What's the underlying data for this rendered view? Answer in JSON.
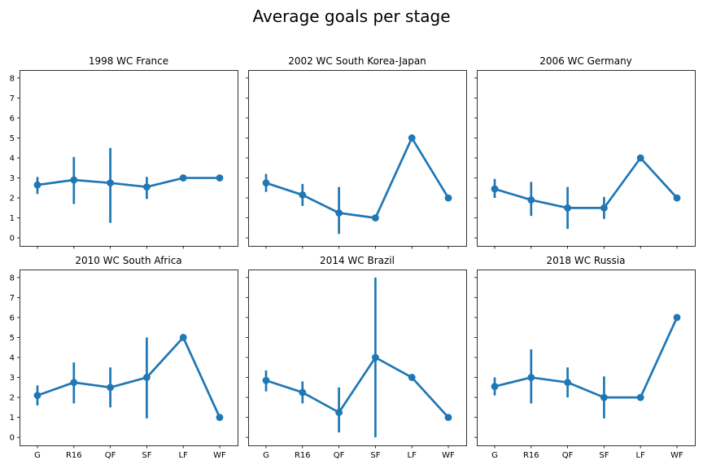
{
  "suptitle": "Average goals per stage",
  "chart_data": {
    "type": "line",
    "categories": [
      "G",
      "R16",
      "QF",
      "SF",
      "LF",
      "WF"
    ],
    "yticks": [
      0,
      1,
      2,
      3,
      4,
      5,
      6,
      7,
      8
    ],
    "ylim": [
      -0.4,
      8.4
    ],
    "color": "#1f77b4",
    "grid": false,
    "panels": [
      {
        "title": "1998 WC France",
        "values": [
          2.65,
          2.9,
          2.75,
          2.55,
          3.0,
          3.0
        ],
        "ci_low": [
          2.2,
          1.7,
          0.75,
          1.95,
          3.0,
          3.0
        ],
        "ci_high": [
          3.05,
          4.05,
          4.5,
          3.05,
          3.0,
          3.0
        ]
      },
      {
        "title": "2002 WC South Korea-Japan",
        "values": [
          2.75,
          2.15,
          1.25,
          1.0,
          5.0,
          2.0
        ],
        "ci_low": [
          2.3,
          1.6,
          0.2,
          1.0,
          5.0,
          2.0
        ],
        "ci_high": [
          3.2,
          2.7,
          2.55,
          1.0,
          5.0,
          2.0
        ]
      },
      {
        "title": "2006 WC Germany",
        "values": [
          2.45,
          1.9,
          1.5,
          1.5,
          4.0,
          2.0
        ],
        "ci_low": [
          2.0,
          1.1,
          0.45,
          0.95,
          4.0,
          2.0
        ],
        "ci_high": [
          2.95,
          2.8,
          2.55,
          2.05,
          4.0,
          2.0
        ]
      },
      {
        "title": "2010 WC South Africa",
        "values": [
          2.1,
          2.75,
          2.5,
          3.0,
          5.0,
          1.0
        ],
        "ci_low": [
          1.6,
          1.7,
          1.5,
          0.95,
          5.0,
          1.0
        ],
        "ci_high": [
          2.6,
          3.75,
          3.5,
          5.0,
          5.0,
          1.0
        ]
      },
      {
        "title": "2014 WC Brazil",
        "values": [
          2.85,
          2.25,
          1.25,
          4.0,
          3.0,
          1.0
        ],
        "ci_low": [
          2.3,
          1.7,
          0.25,
          0.0,
          3.0,
          1.0
        ],
        "ci_high": [
          3.35,
          2.8,
          2.5,
          8.0,
          3.0,
          1.0
        ]
      },
      {
        "title": "2018 WC Russia",
        "values": [
          2.55,
          3.0,
          2.75,
          2.0,
          2.0,
          6.0
        ],
        "ci_low": [
          2.1,
          1.7,
          2.0,
          0.95,
          2.0,
          6.0
        ],
        "ci_high": [
          3.0,
          4.4,
          3.5,
          3.05,
          2.0,
          6.0
        ]
      }
    ]
  }
}
